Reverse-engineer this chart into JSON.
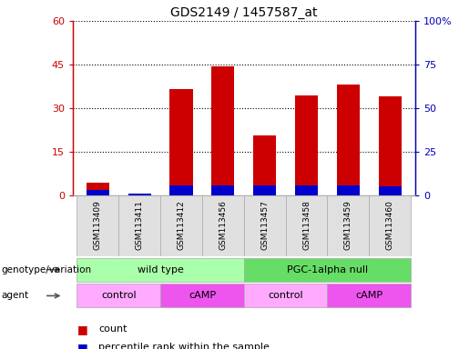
{
  "title": "GDS2149 / 1457587_at",
  "samples": [
    "GSM113409",
    "GSM113411",
    "GSM113412",
    "GSM113456",
    "GSM113457",
    "GSM113458",
    "GSM113459",
    "GSM113460"
  ],
  "count_values": [
    4.5,
    0.0,
    36.5,
    44.5,
    20.5,
    34.5,
    38.0,
    34.0
  ],
  "percentile_values": [
    2.0,
    0.5,
    3.5,
    3.5,
    3.5,
    3.5,
    3.5,
    3.0
  ],
  "bar_color_red": "#cc0000",
  "bar_color_blue": "#0000cc",
  "ylim_left": [
    0,
    60
  ],
  "ylim_right": [
    0,
    100
  ],
  "yticks_left": [
    0,
    15,
    30,
    45,
    60
  ],
  "yticks_right": [
    0,
    25,
    50,
    75,
    100
  ],
  "ytick_labels_left": [
    "0",
    "15",
    "30",
    "45",
    "60"
  ],
  "ytick_labels_right": [
    "0",
    "25",
    "50",
    "75",
    "100%"
  ],
  "genotype_groups": [
    {
      "label": "wild type",
      "start": 0,
      "end": 4,
      "color": "#aaffaa"
    },
    {
      "label": "PGC-1alpha null",
      "start": 4,
      "end": 8,
      "color": "#66dd66"
    }
  ],
  "agent_groups": [
    {
      "label": "control",
      "start": 0,
      "end": 2,
      "color": "#ffaaff"
    },
    {
      "label": "cAMP",
      "start": 2,
      "end": 4,
      "color": "#ee55ee"
    },
    {
      "label": "control",
      "start": 4,
      "end": 6,
      "color": "#ffaaff"
    },
    {
      "label": "cAMP",
      "start": 6,
      "end": 8,
      "color": "#ee55ee"
    }
  ],
  "legend_items": [
    {
      "label": "count",
      "color": "#cc0000"
    },
    {
      "label": "percentile rank within the sample",
      "color": "#0000cc"
    }
  ],
  "left_label_genotype": "genotype/variation",
  "left_label_agent": "agent",
  "background_color": "#ffffff",
  "left_axis_color": "#cc0000",
  "right_axis_color": "#0000bb"
}
